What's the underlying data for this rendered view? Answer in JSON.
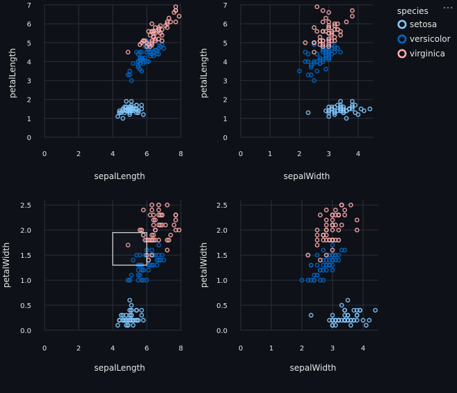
{
  "chart_data": {
    "type": "scatter",
    "legend": {
      "title": "species",
      "placement": "right-top",
      "entries": [
        {
          "name": "setosa",
          "color": "#83c9ff"
        },
        {
          "name": "versicolor",
          "color": "#0068c9"
        },
        {
          "name": "virginica",
          "color": "#ffabab"
        }
      ],
      "menu_icon": "more-dots-icon"
    },
    "panels": [
      {
        "id": "p1",
        "xfield": "sepalLength",
        "yfield": "petalLength",
        "xlabel": "sepalLength",
        "ylabel": "petalLength",
        "xlim": [
          0,
          8
        ],
        "ylim": [
          0,
          7
        ],
        "xticks": [
          "0",
          "2",
          "4",
          "6",
          "8"
        ],
        "yticks": [
          "0",
          "1",
          "2",
          "3",
          "4",
          "5",
          "6",
          "7"
        ],
        "brush": null
      },
      {
        "id": "p2",
        "xfield": "sepalWidth",
        "yfield": "petalLength",
        "xlabel": "sepalWidth",
        "ylabel": "petalLength",
        "xlim": [
          0,
          4.5
        ],
        "ylim": [
          0,
          7
        ],
        "xticks": [
          "0",
          "1",
          "2",
          "3",
          "4"
        ],
        "yticks": [
          "0",
          "1",
          "2",
          "3",
          "4",
          "5",
          "6",
          "7"
        ],
        "brush": null
      },
      {
        "id": "p3",
        "xfield": "sepalLength",
        "yfield": "petalWidth",
        "xlabel": "sepalLength",
        "ylabel": "petalWidth",
        "xlim": [
          0,
          8
        ],
        "ylim": [
          0,
          2.6
        ],
        "xticks": [
          "0",
          "2",
          "4",
          "6",
          "8"
        ],
        "yticks": [
          "0.0",
          "0.5",
          "1.0",
          "1.5",
          "2.0",
          "2.5"
        ],
        "brush": {
          "x": [
            4.0,
            6.0
          ],
          "y": [
            1.3,
            1.95
          ]
        }
      },
      {
        "id": "p4",
        "xfield": "sepalWidth",
        "yfield": "petalWidth",
        "xlabel": "sepalWidth",
        "ylabel": "petalWidth",
        "xlim": [
          0,
          4.5
        ],
        "ylim": [
          0,
          2.6
        ],
        "xticks": [
          "0",
          "1",
          "2",
          "3",
          "4"
        ],
        "yticks": [
          "0.0",
          "0.5",
          "1.0",
          "1.5",
          "2.0",
          "2.5"
        ],
        "brush": null
      }
    ],
    "grid": true,
    "series": [
      {
        "name": "setosa",
        "color": "#83c9ff",
        "fields": [
          "sepalLength",
          "sepalWidth",
          "petalLength",
          "petalWidth"
        ],
        "points": [
          [
            5.1,
            3.5,
            1.4,
            0.2
          ],
          [
            4.9,
            3.0,
            1.4,
            0.2
          ],
          [
            4.7,
            3.2,
            1.3,
            0.2
          ],
          [
            4.6,
            3.1,
            1.5,
            0.2
          ],
          [
            5.0,
            3.6,
            1.4,
            0.2
          ],
          [
            5.4,
            3.9,
            1.7,
            0.4
          ],
          [
            4.6,
            3.4,
            1.4,
            0.3
          ],
          [
            5.0,
            3.4,
            1.5,
            0.2
          ],
          [
            4.4,
            2.9,
            1.4,
            0.2
          ],
          [
            4.9,
            3.1,
            1.5,
            0.1
          ],
          [
            5.4,
            3.7,
            1.5,
            0.2
          ],
          [
            4.8,
            3.4,
            1.6,
            0.2
          ],
          [
            4.8,
            3.0,
            1.4,
            0.1
          ],
          [
            4.3,
            3.0,
            1.1,
            0.1
          ],
          [
            5.8,
            4.0,
            1.2,
            0.2
          ],
          [
            5.7,
            4.4,
            1.5,
            0.4
          ],
          [
            5.4,
            3.9,
            1.3,
            0.4
          ],
          [
            5.1,
            3.5,
            1.4,
            0.3
          ],
          [
            5.7,
            3.8,
            1.7,
            0.3
          ],
          [
            5.1,
            3.8,
            1.5,
            0.3
          ],
          [
            5.4,
            3.4,
            1.7,
            0.2
          ],
          [
            5.1,
            3.7,
            1.5,
            0.4
          ],
          [
            4.6,
            3.6,
            1.0,
            0.2
          ],
          [
            5.1,
            3.3,
            1.7,
            0.5
          ],
          [
            4.8,
            3.4,
            1.9,
            0.2
          ],
          [
            5.0,
            3.0,
            1.6,
            0.2
          ],
          [
            5.0,
            3.4,
            1.6,
            0.4
          ],
          [
            5.2,
            3.5,
            1.5,
            0.2
          ],
          [
            5.2,
            3.4,
            1.4,
            0.2
          ],
          [
            4.7,
            3.2,
            1.6,
            0.2
          ],
          [
            4.8,
            3.1,
            1.6,
            0.2
          ],
          [
            5.4,
            3.4,
            1.5,
            0.4
          ],
          [
            5.2,
            4.1,
            1.5,
            0.1
          ],
          [
            5.5,
            4.2,
            1.4,
            0.2
          ],
          [
            4.9,
            3.1,
            1.5,
            0.2
          ],
          [
            5.0,
            3.2,
            1.2,
            0.2
          ],
          [
            5.5,
            3.5,
            1.3,
            0.2
          ],
          [
            4.9,
            3.6,
            1.4,
            0.1
          ],
          [
            4.4,
            3.0,
            1.3,
            0.2
          ],
          [
            5.1,
            3.4,
            1.5,
            0.2
          ],
          [
            5.0,
            3.5,
            1.3,
            0.3
          ],
          [
            4.5,
            2.3,
            1.3,
            0.3
          ],
          [
            4.4,
            3.2,
            1.3,
            0.2
          ],
          [
            5.0,
            3.5,
            1.6,
            0.6
          ],
          [
            5.1,
            3.8,
            1.9,
            0.4
          ],
          [
            4.8,
            3.0,
            1.4,
            0.3
          ],
          [
            5.1,
            3.8,
            1.6,
            0.2
          ],
          [
            4.6,
            3.2,
            1.4,
            0.2
          ],
          [
            5.3,
            3.7,
            1.5,
            0.2
          ],
          [
            5.0,
            3.3,
            1.4,
            0.2
          ]
        ]
      },
      {
        "name": "versicolor",
        "color": "#0068c9",
        "fields": [
          "sepalLength",
          "sepalWidth",
          "petalLength",
          "petalWidth"
        ],
        "points": [
          [
            7.0,
            3.2,
            4.7,
            1.4
          ],
          [
            6.4,
            3.2,
            4.5,
            1.5
          ],
          [
            6.9,
            3.1,
            4.9,
            1.5
          ],
          [
            5.5,
            2.3,
            4.0,
            1.3
          ],
          [
            6.5,
            2.8,
            4.6,
            1.5
          ],
          [
            5.7,
            2.8,
            4.5,
            1.3
          ],
          [
            6.3,
            3.3,
            4.7,
            1.6
          ],
          [
            4.9,
            2.4,
            3.3,
            1.0
          ],
          [
            6.6,
            2.9,
            4.6,
            1.3
          ],
          [
            5.2,
            2.7,
            3.9,
            1.4
          ],
          [
            5.0,
            2.0,
            3.5,
            1.0
          ],
          [
            5.9,
            3.0,
            4.2,
            1.5
          ],
          [
            6.0,
            2.2,
            4.0,
            1.0
          ],
          [
            6.1,
            2.9,
            4.7,
            1.4
          ],
          [
            5.6,
            2.9,
            3.6,
            1.3
          ],
          [
            6.7,
            3.1,
            4.4,
            1.4
          ],
          [
            5.6,
            3.0,
            4.5,
            1.5
          ],
          [
            5.8,
            2.7,
            4.1,
            1.0
          ],
          [
            6.2,
            2.2,
            4.5,
            1.5
          ],
          [
            5.6,
            2.5,
            3.9,
            1.1
          ],
          [
            5.9,
            3.2,
            4.8,
            1.8
          ],
          [
            6.1,
            2.8,
            4.0,
            1.3
          ],
          [
            6.3,
            2.5,
            4.9,
            1.5
          ],
          [
            6.1,
            2.8,
            4.7,
            1.2
          ],
          [
            6.4,
            2.9,
            4.3,
            1.3
          ],
          [
            6.6,
            3.0,
            4.4,
            1.4
          ],
          [
            6.8,
            2.8,
            4.8,
            1.4
          ],
          [
            6.7,
            3.0,
            5.0,
            1.7
          ],
          [
            6.0,
            2.9,
            4.5,
            1.5
          ],
          [
            5.7,
            2.6,
            3.5,
            1.0
          ],
          [
            5.5,
            2.4,
            3.8,
            1.1
          ],
          [
            5.5,
            2.4,
            3.7,
            1.0
          ],
          [
            5.8,
            2.7,
            3.9,
            1.2
          ],
          [
            6.0,
            2.7,
            5.1,
            1.6
          ],
          [
            5.4,
            3.0,
            4.5,
            1.5
          ],
          [
            6.0,
            3.4,
            4.5,
            1.6
          ],
          [
            6.7,
            3.1,
            4.7,
            1.5
          ],
          [
            6.3,
            2.3,
            4.4,
            1.3
          ],
          [
            5.6,
            3.0,
            4.1,
            1.3
          ],
          [
            5.5,
            2.5,
            4.0,
            1.3
          ],
          [
            5.5,
            2.6,
            4.4,
            1.2
          ],
          [
            6.1,
            3.0,
            4.6,
            1.4
          ],
          [
            5.8,
            2.6,
            4.0,
            1.2
          ],
          [
            5.0,
            2.3,
            3.3,
            1.0
          ],
          [
            5.6,
            2.7,
            4.2,
            1.3
          ],
          [
            5.7,
            3.0,
            4.2,
            1.2
          ],
          [
            5.7,
            2.9,
            4.2,
            1.3
          ],
          [
            6.2,
            2.9,
            4.3,
            1.3
          ],
          [
            5.1,
            2.5,
            3.0,
            1.1
          ],
          [
            5.7,
            2.8,
            4.1,
            1.3
          ]
        ]
      },
      {
        "name": "virginica",
        "color": "#ffabab",
        "fields": [
          "sepalLength",
          "sepalWidth",
          "petalLength",
          "petalWidth"
        ],
        "points": [
          [
            6.3,
            3.3,
            6.0,
            2.5
          ],
          [
            5.8,
            2.7,
            5.1,
            1.9
          ],
          [
            7.1,
            3.0,
            5.9,
            2.1
          ],
          [
            6.3,
            2.9,
            5.6,
            1.8
          ],
          [
            6.5,
            3.0,
            5.8,
            2.2
          ],
          [
            7.6,
            3.0,
            6.6,
            2.1
          ],
          [
            4.9,
            2.5,
            4.5,
            1.7
          ],
          [
            7.3,
            2.9,
            6.3,
            1.8
          ],
          [
            6.7,
            2.5,
            5.8,
            1.8
          ],
          [
            7.2,
            3.6,
            6.1,
            2.5
          ],
          [
            6.5,
            3.2,
            5.1,
            2.0
          ],
          [
            6.4,
            2.7,
            5.3,
            1.9
          ],
          [
            6.8,
            3.0,
            5.5,
            2.1
          ],
          [
            5.7,
            2.5,
            5.0,
            2.0
          ],
          [
            5.8,
            2.8,
            5.1,
            2.4
          ],
          [
            6.4,
            3.2,
            5.3,
            2.3
          ],
          [
            6.5,
            3.0,
            5.5,
            1.8
          ],
          [
            7.7,
            3.8,
            6.7,
            2.2
          ],
          [
            7.7,
            2.6,
            6.9,
            2.3
          ],
          [
            6.0,
            2.2,
            5.0,
            1.5
          ],
          [
            6.9,
            3.2,
            5.7,
            2.3
          ],
          [
            5.6,
            2.8,
            4.9,
            2.0
          ],
          [
            7.7,
            2.8,
            6.7,
            2.0
          ],
          [
            6.3,
            2.7,
            4.9,
            1.8
          ],
          [
            6.7,
            3.3,
            5.7,
            2.1
          ],
          [
            7.2,
            3.2,
            6.0,
            1.8
          ],
          [
            6.2,
            2.8,
            4.8,
            1.8
          ],
          [
            6.1,
            3.0,
            4.9,
            1.8
          ],
          [
            6.4,
            2.8,
            5.6,
            2.1
          ],
          [
            7.2,
            3.0,
            5.8,
            1.6
          ],
          [
            7.4,
            2.8,
            6.1,
            1.9
          ],
          [
            7.9,
            3.8,
            6.4,
            2.0
          ],
          [
            6.4,
            2.8,
            5.6,
            2.2
          ],
          [
            6.3,
            2.8,
            5.1,
            1.5
          ],
          [
            6.1,
            2.6,
            5.6,
            1.4
          ],
          [
            7.7,
            3.0,
            6.1,
            2.3
          ],
          [
            6.3,
            3.4,
            5.6,
            2.4
          ],
          [
            6.4,
            3.1,
            5.5,
            1.8
          ],
          [
            6.0,
            3.0,
            4.8,
            1.8
          ],
          [
            6.9,
            3.1,
            5.4,
            2.1
          ],
          [
            6.7,
            3.1,
            5.6,
            2.4
          ],
          [
            6.9,
            3.1,
            5.1,
            2.3
          ],
          [
            5.8,
            2.7,
            5.1,
            1.9
          ],
          [
            6.8,
            3.2,
            5.9,
            2.3
          ],
          [
            6.7,
            3.3,
            5.7,
            2.5
          ],
          [
            6.7,
            3.0,
            5.2,
            2.3
          ],
          [
            6.3,
            2.5,
            5.0,
            1.9
          ],
          [
            6.5,
            3.0,
            5.2,
            2.0
          ],
          [
            6.2,
            3.4,
            5.4,
            2.3
          ],
          [
            5.9,
            3.0,
            5.1,
            1.8
          ]
        ]
      }
    ]
  }
}
